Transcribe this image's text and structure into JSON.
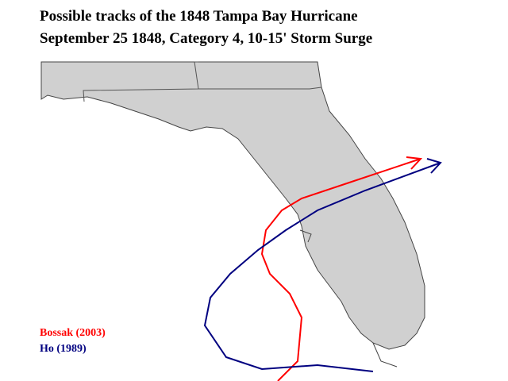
{
  "title": [
    "Possible tracks of the 1848 Tampa Bay Hurricane",
    "September 25  1848, Category  4,  10-15' Storm Surge"
  ],
  "legend": [
    {
      "label": "Bossak (2003)",
      "color": "#ff0000"
    },
    {
      "label": "Ho (1989)",
      "color": "#000080"
    }
  ]
}
